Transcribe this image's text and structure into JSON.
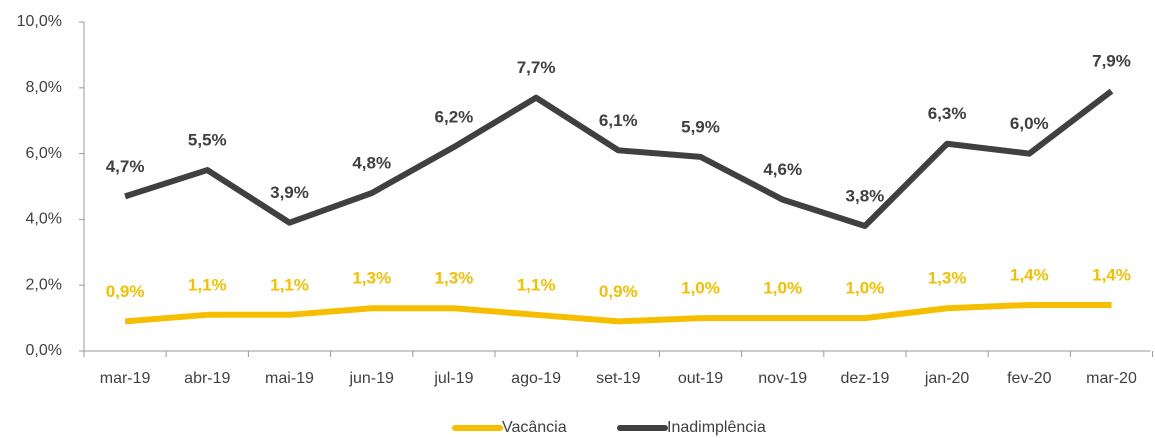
{
  "chart_data": {
    "type": "line",
    "categories": [
      "mar-19",
      "abr-19",
      "mai-19",
      "jun-19",
      "jul-19",
      "ago-19",
      "set-19",
      "out-19",
      "nov-19",
      "dez-19",
      "jan-20",
      "fev-20",
      "mar-20"
    ],
    "series": [
      {
        "name": "Vacância",
        "color": "#f5bf00",
        "values": [
          0.9,
          1.1,
          1.1,
          1.3,
          1.3,
          1.1,
          0.9,
          1.0,
          1.0,
          1.0,
          1.3,
          1.4,
          1.4
        ],
        "value_labels": [
          "0,9%",
          "1,1%",
          "1,1%",
          "1,3%",
          "1,3%",
          "1,1%",
          "0,9%",
          "1,0%",
          "1,0%",
          "1,0%",
          "1,3%",
          "1,4%",
          "1,4%"
        ]
      },
      {
        "name": "Inadimplência",
        "color": "#404040",
        "values": [
          4.7,
          5.5,
          3.9,
          4.8,
          6.2,
          7.7,
          6.1,
          5.9,
          4.6,
          3.8,
          6.3,
          6.0,
          7.9
        ],
        "value_labels": [
          "4,7%",
          "5,5%",
          "3,9%",
          "4,8%",
          "6,2%",
          "7,7%",
          "6,1%",
          "5,9%",
          "4,6%",
          "3,8%",
          "6,3%",
          "6,0%",
          "7,9%"
        ]
      }
    ],
    "ylim": [
      0,
      10
    ],
    "yticks": [
      {
        "value": 0,
        "label": "0,0%"
      },
      {
        "value": 2,
        "label": "2,0%"
      },
      {
        "value": 4,
        "label": "4,0%"
      },
      {
        "value": 6,
        "label": "6,0%"
      },
      {
        "value": 8,
        "label": "8,0%"
      },
      {
        "value": 10,
        "label": "10,0%"
      }
    ],
    "legend": "bottom"
  }
}
